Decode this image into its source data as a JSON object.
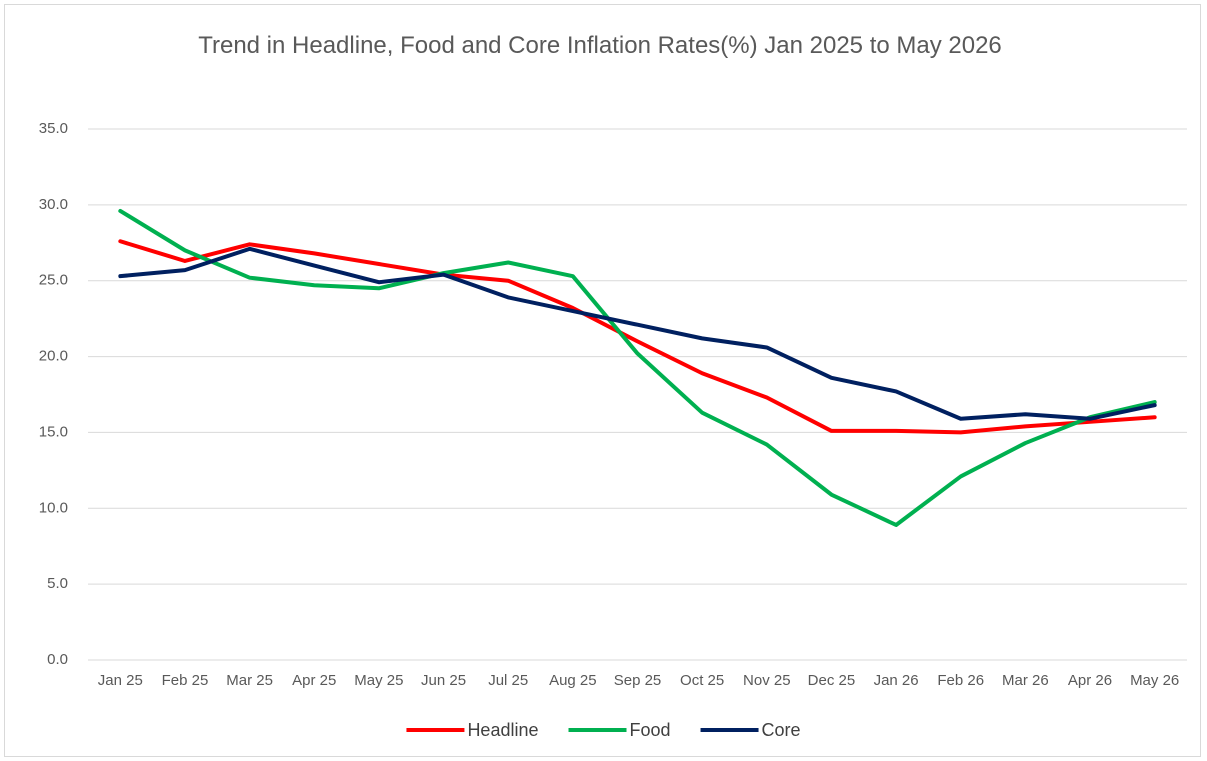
{
  "chart_data": {
    "type": "line",
    "title": "Trend in Headline, Food and Core Inflation Rates(%) Jan 2025 to May 2026",
    "categories": [
      "Jan 25",
      "Feb 25",
      "Mar 25",
      "Apr 25",
      "May 25",
      "Jun 25",
      "Jul 25",
      "Aug 25",
      "Sep 25",
      "Oct 25",
      "Nov 25",
      "Dec 25",
      "Jan 26",
      "Feb 26",
      "Mar 26",
      "Apr 26",
      "May 26"
    ],
    "series": [
      {
        "name": "Headline",
        "color": "#ff0000",
        "values": [
          27.6,
          26.3,
          27.4,
          26.8,
          26.1,
          25.4,
          25.0,
          23.2,
          21.0,
          18.9,
          17.3,
          15.1,
          15.1,
          15.0,
          15.4,
          15.7,
          16.0
        ]
      },
      {
        "name": "Food",
        "color": "#00b050",
        "values": [
          29.6,
          27.0,
          25.2,
          24.7,
          24.5,
          25.5,
          26.2,
          25.3,
          20.2,
          16.3,
          14.2,
          10.9,
          8.9,
          12.1,
          14.3,
          16.0,
          17.0
        ]
      },
      {
        "name": "Core",
        "color": "#002060",
        "values": [
          25.3,
          25.7,
          27.1,
          26.0,
          24.9,
          25.4,
          23.9,
          23.0,
          22.1,
          21.2,
          20.6,
          18.6,
          17.7,
          15.9,
          16.2,
          15.9,
          16.8
        ]
      }
    ],
    "ylim": [
      0,
      35
    ],
    "yticks": [
      {
        "value": 0,
        "label": "0.0"
      },
      {
        "value": 5,
        "label": "5.0"
      },
      {
        "value": 10,
        "label": "10.0"
      },
      {
        "value": 15,
        "label": "15.0"
      },
      {
        "value": 20,
        "label": "20.0"
      },
      {
        "value": 25,
        "label": "25.0"
      },
      {
        "value": 30,
        "label": "30.0"
      },
      {
        "value": 35,
        "label": "35.0"
      }
    ],
    "grid": true,
    "legend": "bottom"
  }
}
